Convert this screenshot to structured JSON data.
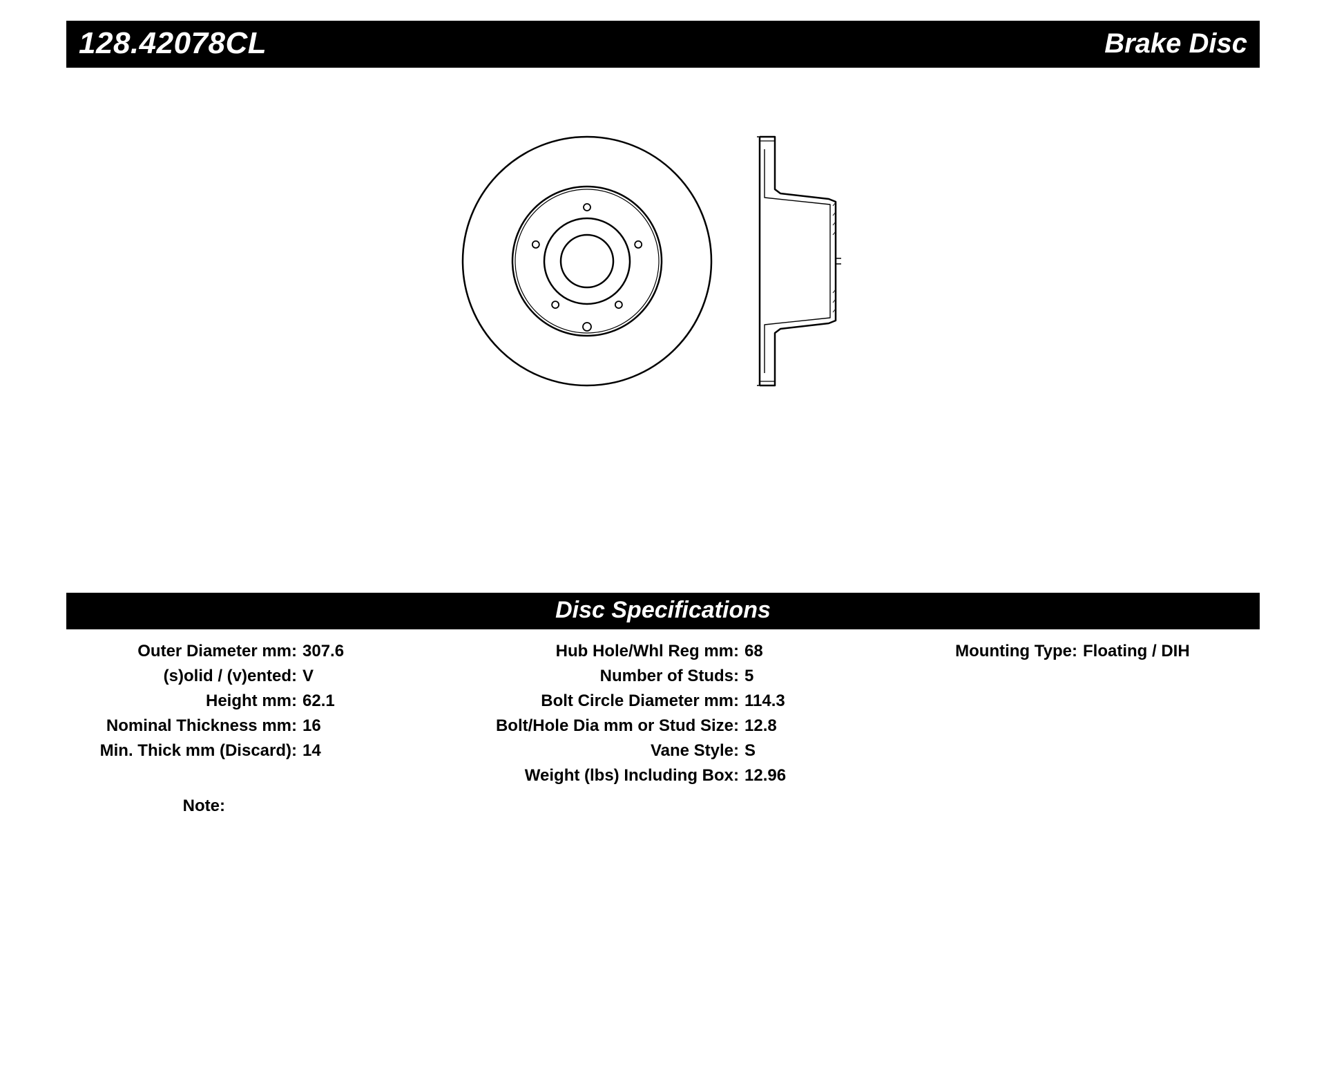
{
  "header": {
    "part_number": "128.42078CL",
    "product_name": "Brake Disc"
  },
  "spec_header": "Disc Specifications",
  "specs": {
    "col1": [
      {
        "label": "Outer Diameter mm:",
        "value": "307.6"
      },
      {
        "label": "(s)olid / (v)ented:",
        "value": "V"
      },
      {
        "label": "Height mm:",
        "value": "62.1"
      },
      {
        "label": "Nominal Thickness mm:",
        "value": "16"
      },
      {
        "label": "Min. Thick mm (Discard):",
        "value": "14"
      }
    ],
    "col2": [
      {
        "label": "Hub Hole/Whl Reg mm:",
        "value": "68"
      },
      {
        "label": "Number of Studs:",
        "value": "5"
      },
      {
        "label": "Bolt Circle Diameter mm:",
        "value": "114.3"
      },
      {
        "label": "Bolt/Hole Dia mm or Stud Size:",
        "value": "12.8"
      },
      {
        "label": "Vane Style:",
        "value": "S"
      },
      {
        "label": "Weight (lbs) Including Box:",
        "value": "12.96"
      }
    ],
    "col3": [
      {
        "label": "Mounting Type:",
        "value": "Floating / DIH"
      }
    ],
    "note_label": "Note:"
  },
  "drawing": {
    "stroke_color": "#000000",
    "stroke_width": 2.5,
    "front_view": {
      "outer_radius": 180,
      "inner_band_radius": 108,
      "hub_outer_radius": 62,
      "hub_hole_radius": 38,
      "stud_circle_radius": 78,
      "stud_hole_radius": 5,
      "stud_count": 5,
      "bottom_index_radius": 6,
      "bottom_index_offset": 95
    },
    "side_view": {
      "height_total": 360,
      "flange_half_height": 180,
      "flange_width": 22,
      "hat_depth": 110,
      "hat_half_height": 86,
      "hub_bore_half": 34
    }
  }
}
